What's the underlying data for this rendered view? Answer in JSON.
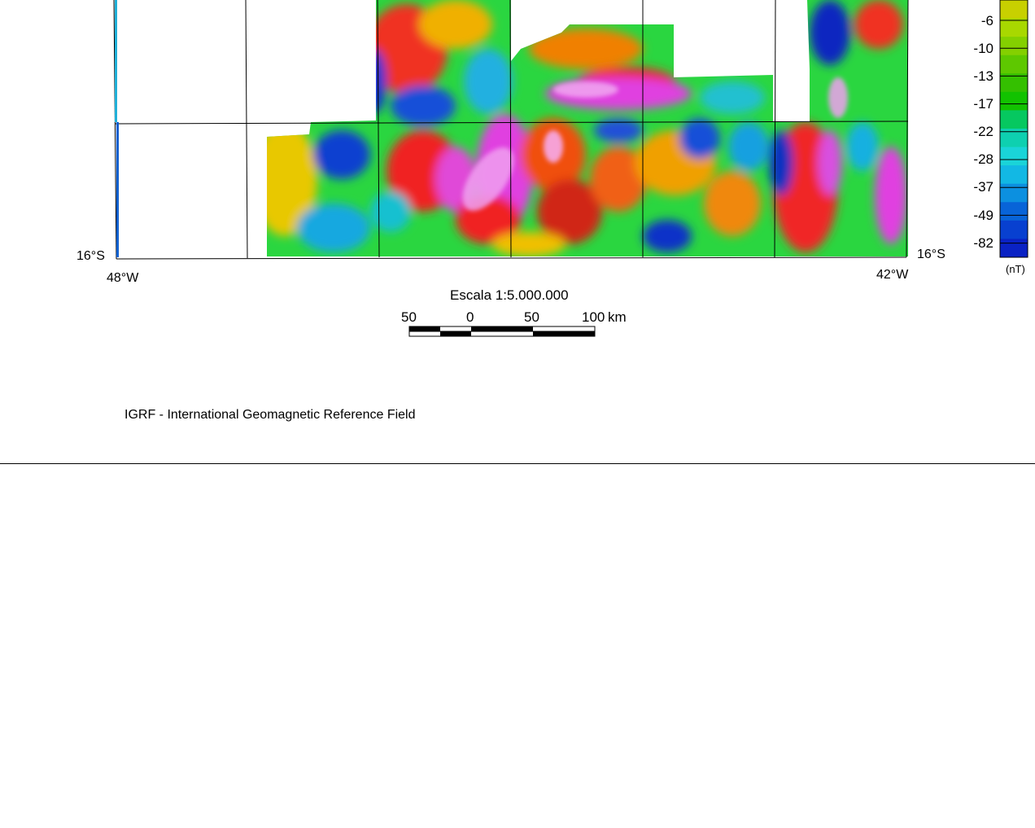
{
  "map": {
    "corner_labels": {
      "lat_left": "16°S",
      "lat_right": "16°S",
      "lon_left": "48°W",
      "lon_right": "42°W"
    }
  },
  "scale": {
    "title": "Escala 1:5.000.000",
    "ticks": [
      "50",
      "0",
      "50",
      "100"
    ],
    "unit": "km"
  },
  "colorbar": {
    "labels": [
      "-6",
      "-10",
      "-13",
      "-17",
      "-22",
      "-28",
      "-37",
      "-49",
      "-82"
    ],
    "unit": "(nT)",
    "colors": [
      "#c8d000",
      "#a8d800",
      "#84d000",
      "#5ec800",
      "#34c000",
      "#12c200",
      "#06c860",
      "#0ed0b0",
      "#1ad4d8",
      "#12b8e4",
      "#0c90e0",
      "#0864d8",
      "#0840d0",
      "#0a22c4"
    ]
  },
  "footer": {
    "reference_text": "IGRF - International Geomagnetic Reference Field"
  }
}
